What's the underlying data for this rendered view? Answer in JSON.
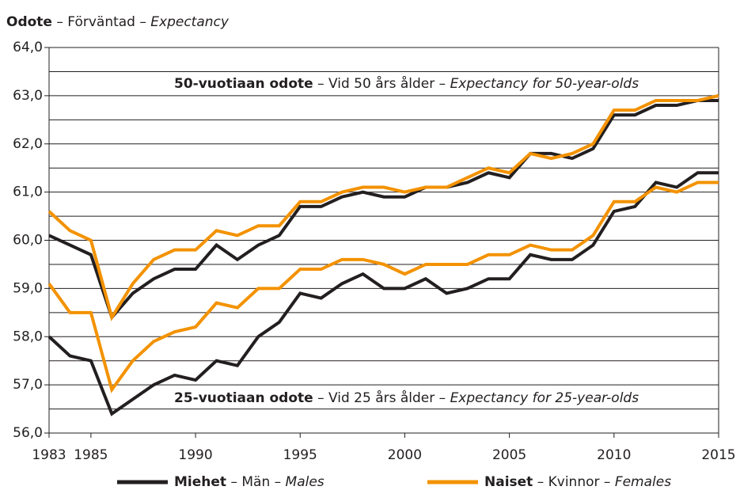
{
  "chart_data": {
    "type": "line",
    "title": {
      "bold": "Odote",
      "text": " – Förväntad – ",
      "italic": "Expectancy"
    },
    "annotations": [
      {
        "bold": "50-vuotiaan odote",
        "text": " – Vid 50 års ålder – ",
        "italic": "Expectancy for 50-year-olds"
      },
      {
        "bold": "25-vuotiaan odote",
        "text": " – Vid 25 års ålder – ",
        "italic": "Expectancy for 25-year-olds"
      }
    ],
    "legend": [
      {
        "bold": "Miehet",
        "text": " – Män – ",
        "italic": "Males",
        "color": "#231f20"
      },
      {
        "bold": "Naiset",
        "text": " – Kvinnor – ",
        "italic": "Females",
        "color": "#f39200"
      }
    ],
    "x": [
      1983,
      1984,
      1985,
      1986,
      1987,
      1988,
      1989,
      1990,
      1991,
      1992,
      1993,
      1994,
      1995,
      1996,
      1997,
      1998,
      1999,
      2000,
      2001,
      2002,
      2003,
      2004,
      2005,
      2006,
      2007,
      2008,
      2009,
      2010,
      2011,
      2012,
      2013,
      2014,
      2015
    ],
    "series": [
      {
        "legend": 0,
        "annotation": 0,
        "color": "#231f20",
        "values": [
          60.1,
          59.9,
          59.7,
          58.4,
          58.9,
          59.2,
          59.4,
          59.4,
          59.9,
          59.6,
          59.9,
          60.1,
          60.7,
          60.7,
          60.9,
          61.0,
          60.9,
          60.9,
          61.1,
          61.1,
          61.2,
          61.4,
          61.3,
          61.8,
          61.8,
          61.7,
          61.9,
          62.6,
          62.6,
          62.8,
          62.8,
          62.9,
          62.9
        ]
      },
      {
        "legend": 1,
        "annotation": 0,
        "color": "#f39200",
        "values": [
          60.6,
          60.2,
          60.0,
          58.4,
          59.1,
          59.6,
          59.8,
          59.8,
          60.2,
          60.1,
          60.3,
          60.3,
          60.8,
          60.8,
          61.0,
          61.1,
          61.1,
          61.0,
          61.1,
          61.1,
          61.3,
          61.5,
          61.4,
          61.8,
          61.7,
          61.8,
          62.0,
          62.7,
          62.7,
          62.9,
          62.9,
          62.9,
          63.0
        ]
      },
      {
        "legend": 0,
        "annotation": 1,
        "color": "#231f20",
        "values": [
          58.0,
          57.6,
          57.5,
          56.4,
          56.7,
          57.0,
          57.2,
          57.1,
          57.5,
          57.4,
          58.0,
          58.3,
          58.9,
          58.8,
          59.1,
          59.3,
          59.0,
          59.0,
          59.2,
          58.9,
          59.0,
          59.2,
          59.2,
          59.7,
          59.6,
          59.6,
          59.9,
          60.6,
          60.7,
          61.2,
          61.1,
          61.4,
          61.4
        ]
      },
      {
        "legend": 1,
        "annotation": 1,
        "color": "#f39200",
        "values": [
          59.1,
          58.5,
          58.5,
          56.9,
          57.5,
          57.9,
          58.1,
          58.2,
          58.7,
          58.6,
          59.0,
          59.0,
          59.4,
          59.4,
          59.6,
          59.6,
          59.5,
          59.3,
          59.5,
          59.5,
          59.5,
          59.7,
          59.7,
          59.9,
          59.8,
          59.8,
          60.1,
          60.8,
          60.8,
          61.1,
          61.0,
          61.2,
          61.2
        ]
      }
    ],
    "xlim": [
      1983,
      2015
    ],
    "xticks": [
      1983,
      1985,
      1990,
      1995,
      2000,
      2005,
      2010,
      2015
    ],
    "ylim": [
      56,
      64
    ],
    "yticks": [
      {
        "value": 56,
        "label": "56,0"
      },
      {
        "value": 57,
        "label": "57,0"
      },
      {
        "value": 58,
        "label": "58,0"
      },
      {
        "value": 59,
        "label": "59,0"
      },
      {
        "value": 60,
        "label": "60,0"
      },
      {
        "value": 61,
        "label": "61,0"
      },
      {
        "value": 62,
        "label": "62,0"
      },
      {
        "value": 63,
        "label": "63,0"
      },
      {
        "value": 64,
        "label": "64,0"
      }
    ],
    "minor_yticks": [
      56.5,
      57.5,
      58.5,
      59.5,
      60.5,
      61.5,
      62.5,
      63.5
    ],
    "grid": true
  }
}
